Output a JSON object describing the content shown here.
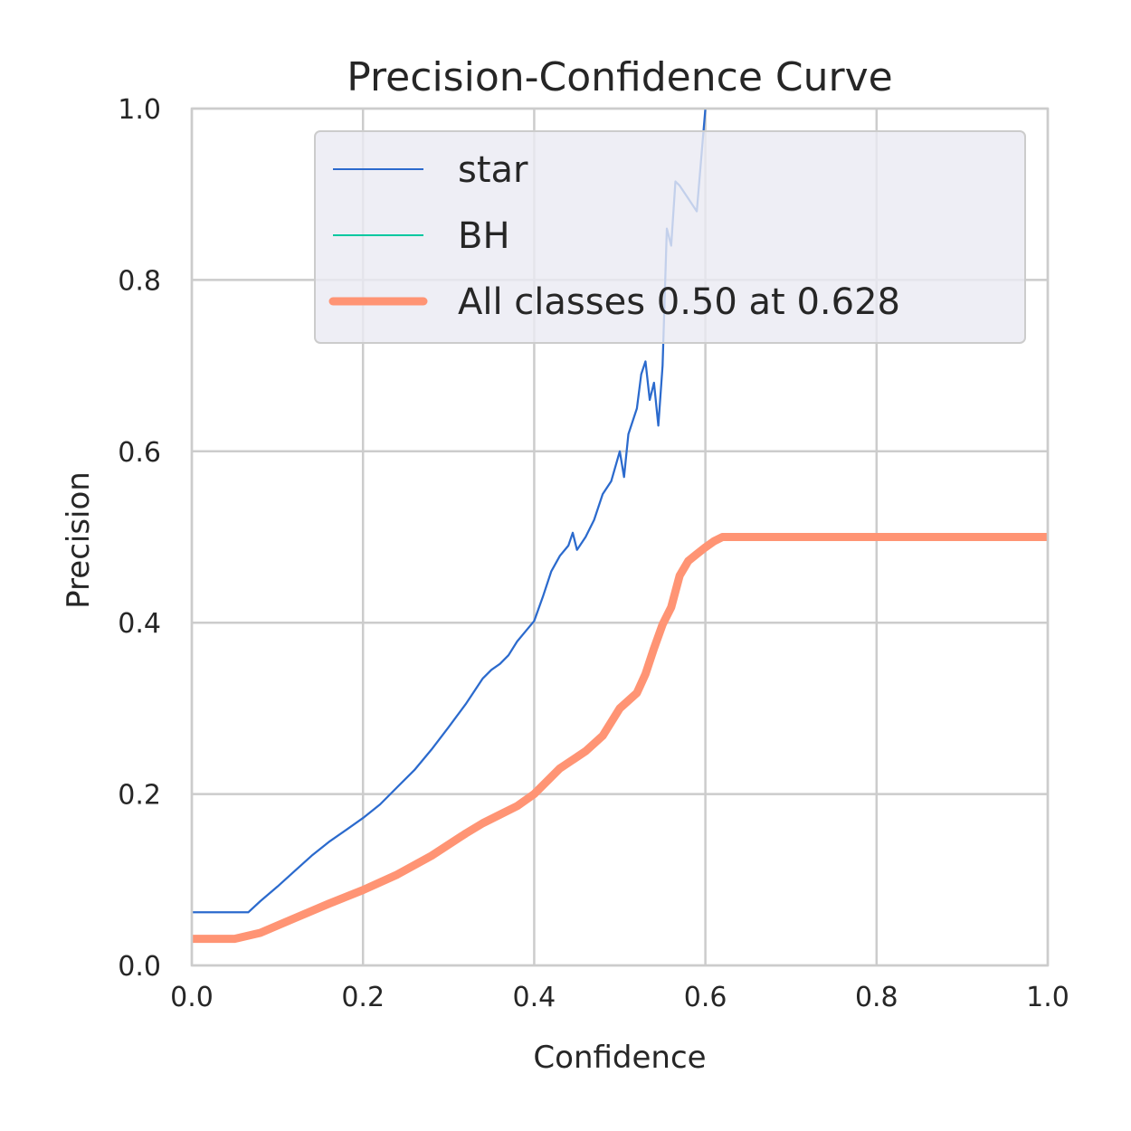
{
  "chart_data": {
    "type": "line",
    "title": "Precision-Confidence Curve",
    "xlabel": "Confidence",
    "ylabel": "Precision",
    "xlim": [
      0,
      1
    ],
    "ylim": [
      0,
      1
    ],
    "grid": true,
    "legend_position": "top-right",
    "x_ticks": [
      "0.0",
      "0.2",
      "0.4",
      "0.6",
      "0.8",
      "1.0"
    ],
    "y_ticks": [
      "0.0",
      "0.2",
      "0.4",
      "0.6",
      "0.8",
      "1.0"
    ],
    "series": [
      {
        "name": "star",
        "color": "#2b6acd",
        "line_width": 1.5,
        "x": [
          0.0,
          0.066,
          0.08,
          0.1,
          0.12,
          0.14,
          0.16,
          0.18,
          0.2,
          0.22,
          0.24,
          0.26,
          0.28,
          0.3,
          0.32,
          0.34,
          0.35,
          0.36,
          0.37,
          0.38,
          0.39,
          0.4,
          0.41,
          0.42,
          0.43,
          0.44,
          0.445,
          0.45,
          0.46,
          0.47,
          0.48,
          0.49,
          0.5,
          0.505,
          0.51,
          0.52,
          0.525,
          0.53,
          0.535,
          0.54,
          0.545,
          0.55,
          0.555,
          0.56,
          0.565,
          0.57,
          0.58,
          0.59,
          0.6
        ],
        "y": [
          0.062,
          0.062,
          0.075,
          0.092,
          0.11,
          0.128,
          0.144,
          0.158,
          0.172,
          0.188,
          0.208,
          0.228,
          0.252,
          0.278,
          0.305,
          0.335,
          0.345,
          0.352,
          0.362,
          0.378,
          0.39,
          0.402,
          0.43,
          0.46,
          0.478,
          0.49,
          0.505,
          0.485,
          0.5,
          0.52,
          0.55,
          0.565,
          0.6,
          0.57,
          0.62,
          0.65,
          0.69,
          0.705,
          0.66,
          0.68,
          0.63,
          0.7,
          0.86,
          0.84,
          0.915,
          0.91,
          0.895,
          0.88,
          1.0
        ]
      },
      {
        "name": "BH",
        "color": "#00c8a0",
        "line_width": 1.5,
        "x": [],
        "y": []
      },
      {
        "name": "All classes 0.50 at 0.628",
        "color": "#ff9474",
        "line_width": 6,
        "x": [
          0.0,
          0.05,
          0.08,
          0.12,
          0.16,
          0.2,
          0.24,
          0.28,
          0.32,
          0.34,
          0.36,
          0.38,
          0.4,
          0.43,
          0.46,
          0.48,
          0.5,
          0.52,
          0.53,
          0.54,
          0.55,
          0.56,
          0.57,
          0.58,
          0.59,
          0.6,
          0.61,
          0.62,
          0.628,
          0.7,
          0.8,
          0.9,
          1.0
        ],
        "y": [
          0.031,
          0.031,
          0.038,
          0.055,
          0.072,
          0.088,
          0.106,
          0.128,
          0.154,
          0.166,
          0.176,
          0.186,
          0.2,
          0.23,
          0.25,
          0.268,
          0.3,
          0.318,
          0.34,
          0.37,
          0.398,
          0.418,
          0.455,
          0.472,
          0.48,
          0.488,
          0.495,
          0.5,
          0.5,
          0.5,
          0.5,
          0.5,
          0.5
        ]
      }
    ]
  }
}
